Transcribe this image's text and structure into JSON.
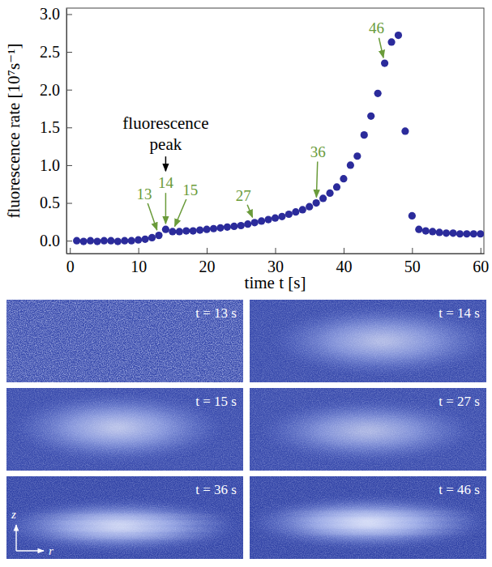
{
  "chart_data": {
    "type": "scatter",
    "x_label": "time t [s]",
    "y_label": "fluorescence rate [10⁷s⁻¹]",
    "x": [
      1,
      2,
      3,
      4,
      5,
      6,
      7,
      8,
      9,
      10,
      11,
      12,
      13,
      14,
      15,
      16,
      17,
      18,
      19,
      20,
      21,
      22,
      23,
      24,
      25,
      26,
      27,
      28,
      29,
      30,
      31,
      32,
      33,
      34,
      35,
      36,
      37,
      38,
      39,
      40,
      41,
      42,
      43,
      44,
      45,
      46,
      47,
      48,
      49,
      50,
      51,
      52,
      53,
      54,
      55,
      56,
      57,
      58,
      59,
      60
    ],
    "series": [
      {
        "color": "#2b2b9b",
        "marker": "circle",
        "values": [
          0.0,
          -0.01,
          0.0,
          -0.01,
          0.0,
          0.0,
          -0.01,
          0.0,
          0.0,
          0.01,
          0.02,
          0.04,
          0.07,
          0.15,
          0.12,
          0.12,
          0.13,
          0.13,
          0.14,
          0.15,
          0.16,
          0.17,
          0.18,
          0.19,
          0.2,
          0.22,
          0.24,
          0.26,
          0.28,
          0.3,
          0.32,
          0.35,
          0.38,
          0.41,
          0.45,
          0.5,
          0.56,
          0.63,
          0.71,
          0.82,
          1.0,
          1.12,
          1.4,
          1.65,
          1.95,
          2.35,
          2.63,
          2.72,
          1.45,
          0.33,
          0.15,
          0.13,
          0.12,
          0.11,
          0.1,
          0.1,
          0.09,
          0.09,
          0.09,
          0.09
        ]
      }
    ],
    "xlim": [
      -0.5,
      60.5
    ],
    "xticks": [
      0,
      10,
      20,
      30,
      40,
      50,
      60
    ],
    "ylim": [
      -0.17,
      3.08
    ],
    "yticks": [
      {
        "value": 0,
        "label": "0.0"
      },
      {
        "value": 0.5,
        "label": "0.5"
      },
      {
        "value": 1,
        "label": "1.0"
      },
      {
        "value": 1.5,
        "label": "1.5"
      },
      {
        "value": 2,
        "label": "2.0"
      },
      {
        "value": 2.5,
        "label": "2.5"
      },
      {
        "value": 3,
        "label": "3.0"
      }
    ],
    "annotations": [
      {
        "text": "fluorescence peak",
        "x": 14,
        "color": "#000000"
      },
      {
        "text": "13",
        "x": 13,
        "color": "#6a9b3a"
      },
      {
        "text": "14",
        "x": 14,
        "color": "#6a9b3a"
      },
      {
        "text": "15",
        "x": 15,
        "color": "#6a9b3a"
      },
      {
        "text": "27",
        "x": 27,
        "color": "#6a9b3a"
      },
      {
        "text": "36",
        "x": 36,
        "color": "#6a9b3a"
      },
      {
        "text": "46",
        "x": 46,
        "color": "#6a9b3a"
      }
    ]
  },
  "images": [
    {
      "label": "t = 13 s"
    },
    {
      "label": "t = 14 s"
    },
    {
      "label": "t = 15 s"
    },
    {
      "label": "t = 27 s"
    },
    {
      "label": "t = 36 s"
    },
    {
      "label": "t = 46 s"
    }
  ],
  "image_axes": {
    "vertical": "z",
    "horizontal": "r"
  }
}
